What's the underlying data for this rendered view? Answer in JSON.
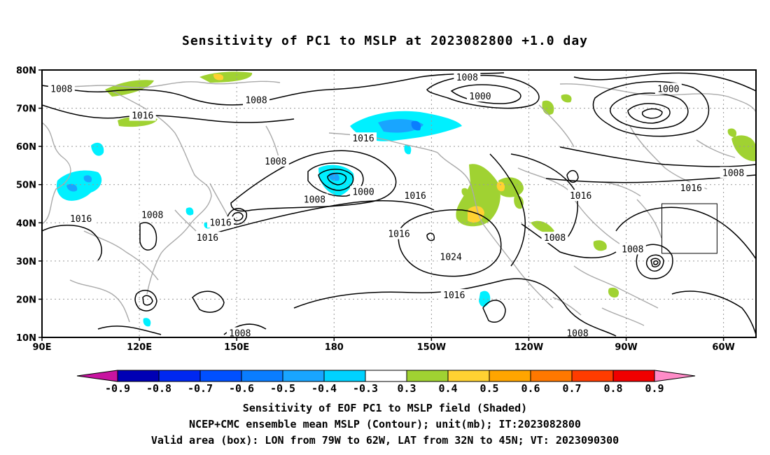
{
  "title": "Sensitivity of PC1 to MSLP at 2023082800 +1.0 day",
  "map": {
    "lon_range": [
      90,
      310
    ],
    "lat_range": [
      10,
      80
    ],
    "lat_ticks": [
      {
        "value": 80,
        "label": "80N"
      },
      {
        "value": 70,
        "label": "70N"
      },
      {
        "value": 60,
        "label": "60N"
      },
      {
        "value": 50,
        "label": "50N"
      },
      {
        "value": 40,
        "label": "40N"
      },
      {
        "value": 30,
        "label": "30N"
      },
      {
        "value": 20,
        "label": "20N"
      },
      {
        "value": 10,
        "label": "10N"
      }
    ],
    "lon_ticks": [
      {
        "value": 90,
        "label": "90E"
      },
      {
        "value": 120,
        "label": "120E"
      },
      {
        "value": 150,
        "label": "150E"
      },
      {
        "value": 180,
        "label": "180"
      },
      {
        "value": 210,
        "label": "150W"
      },
      {
        "value": 240,
        "label": "120W"
      },
      {
        "value": 270,
        "label": "90W"
      },
      {
        "value": 300,
        "label": "60W"
      }
    ],
    "grid": "dotted",
    "valid_box": {
      "lon_min": 281,
      "lon_max": 298,
      "lat_min": 32,
      "lat_max": 45
    },
    "contour_labels": [
      {
        "text": "1008",
        "lon": 96,
        "lat": 75
      },
      {
        "text": "1008",
        "lon": 156,
        "lat": 72
      },
      {
        "text": "1016",
        "lon": 121,
        "lat": 68
      },
      {
        "text": "1008",
        "lon": 221,
        "lat": 78
      },
      {
        "text": "1000",
        "lon": 225,
        "lat": 73
      },
      {
        "text": "1000",
        "lon": 283,
        "lat": 75
      },
      {
        "text": "1016",
        "lon": 189,
        "lat": 62
      },
      {
        "text": "1008",
        "lon": 162,
        "lat": 56
      },
      {
        "text": "1000",
        "lon": 189,
        "lat": 48
      },
      {
        "text": "1008",
        "lon": 174,
        "lat": 46
      },
      {
        "text": "1016",
        "lon": 205,
        "lat": 47
      },
      {
        "text": "1016",
        "lon": 102,
        "lat": 41
      },
      {
        "text": "1008",
        "lon": 124,
        "lat": 42
      },
      {
        "text": "1016",
        "lon": 145,
        "lat": 40
      },
      {
        "text": "1016",
        "lon": 141,
        "lat": 36
      },
      {
        "text": "1016",
        "lon": 200,
        "lat": 37
      },
      {
        "text": "1024",
        "lon": 216,
        "lat": 31
      },
      {
        "text": "1016",
        "lon": 217,
        "lat": 21
      },
      {
        "text": "1008",
        "lon": 248,
        "lat": 36
      },
      {
        "text": "1008",
        "lon": 272,
        "lat": 33
      },
      {
        "text": "1016",
        "lon": 256,
        "lat": 47
      },
      {
        "text": "1008",
        "lon": 151,
        "lat": 11
      },
      {
        "text": "1008",
        "lon": 255,
        "lat": 11
      },
      {
        "text": "1008",
        "lon": 303,
        "lat": 53
      },
      {
        "text": "1016",
        "lon": 290,
        "lat": 49
      }
    ]
  },
  "colorbar": {
    "levels": [
      "-0.9",
      "-0.8",
      "-0.7",
      "-0.6",
      "-0.5",
      "-0.4",
      "-0.3",
      "0.3",
      "0.4",
      "0.5",
      "0.6",
      "0.7",
      "0.8",
      "0.9"
    ],
    "colors": [
      "#0000b4",
      "#0028f0",
      "#0050ff",
      "#0a7dff",
      "#19a5ff",
      "#00d2ff",
      "#ffffff",
      "#a0d232",
      "#ffd232",
      "#ffa500",
      "#ff7800",
      "#ff3c00",
      "#f00000"
    ],
    "low_end_color": "#c814a0",
    "high_end_color": "#ff8cc8"
  },
  "captions": {
    "line1": "Sensitivity of EOF PC1 to MSLP field (Shaded)",
    "line2": "NCEP+CMC ensemble mean MSLP (Contour); unit(mb); IT:2023082800",
    "line3": "Valid area (box): LON from 79W to 62W, LAT from 32N to 45N; VT: 2023090300"
  }
}
